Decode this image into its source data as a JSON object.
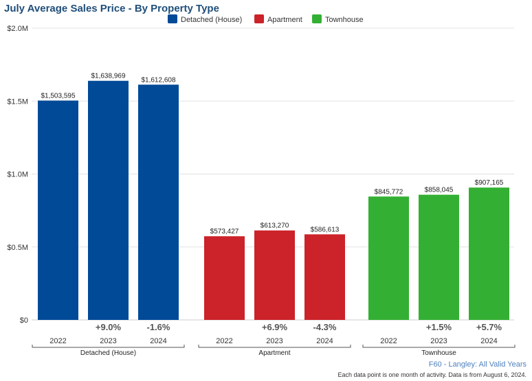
{
  "chart_data": {
    "type": "bar",
    "title": "July Average Sales Price - By Property Type",
    "legend": {
      "position": "top",
      "entries": [
        {
          "name": "Detached (House)",
          "color": "#004a98"
        },
        {
          "name": "Apartment",
          "color": "#cc2229"
        },
        {
          "name": "Townhouse",
          "color": "#33b033"
        }
      ]
    },
    "y_axis": {
      "ylim": [
        0,
        2000000
      ],
      "ticks": [
        {
          "value": 0,
          "label": "$0"
        },
        {
          "value": 500000,
          "label": "$0.5M"
        },
        {
          "value": 1000000,
          "label": "$1.0M"
        },
        {
          "value": 1500000,
          "label": "$1.5M"
        },
        {
          "value": 2000000,
          "label": "$2.0M"
        }
      ],
      "grid": true
    },
    "groups": [
      {
        "name": "Detached (House)",
        "color": "#004a98",
        "bars": [
          {
            "year": "2022",
            "value": 1503595,
            "label": "$1,503,595",
            "change": ""
          },
          {
            "year": "2023",
            "value": 1638969,
            "label": "$1,638,969",
            "change": "+9.0%"
          },
          {
            "year": "2024",
            "value": 1612608,
            "label": "$1,612,608",
            "change": "-1.6%"
          }
        ]
      },
      {
        "name": "Apartment",
        "color": "#cc2229",
        "bars": [
          {
            "year": "2022",
            "value": 573427,
            "label": "$573,427",
            "change": ""
          },
          {
            "year": "2023",
            "value": 613270,
            "label": "$613,270",
            "change": "+6.9%"
          },
          {
            "year": "2024",
            "value": 586613,
            "label": "$586,613",
            "change": "-4.3%"
          }
        ]
      },
      {
        "name": "Townhouse",
        "color": "#33b033",
        "bars": [
          {
            "year": "2022",
            "value": 845772,
            "label": "$845,772",
            "change": ""
          },
          {
            "year": "2023",
            "value": 858045,
            "label": "$858,045",
            "change": "+1.5%"
          },
          {
            "year": "2024",
            "value": 907165,
            "label": "$907,165",
            "change": "+5.7%"
          }
        ]
      }
    ]
  },
  "footer": {
    "source": "F60 - Langley: All Valid Years",
    "note": "Each data point is one month of activity. Data is from August 6, 2024."
  }
}
